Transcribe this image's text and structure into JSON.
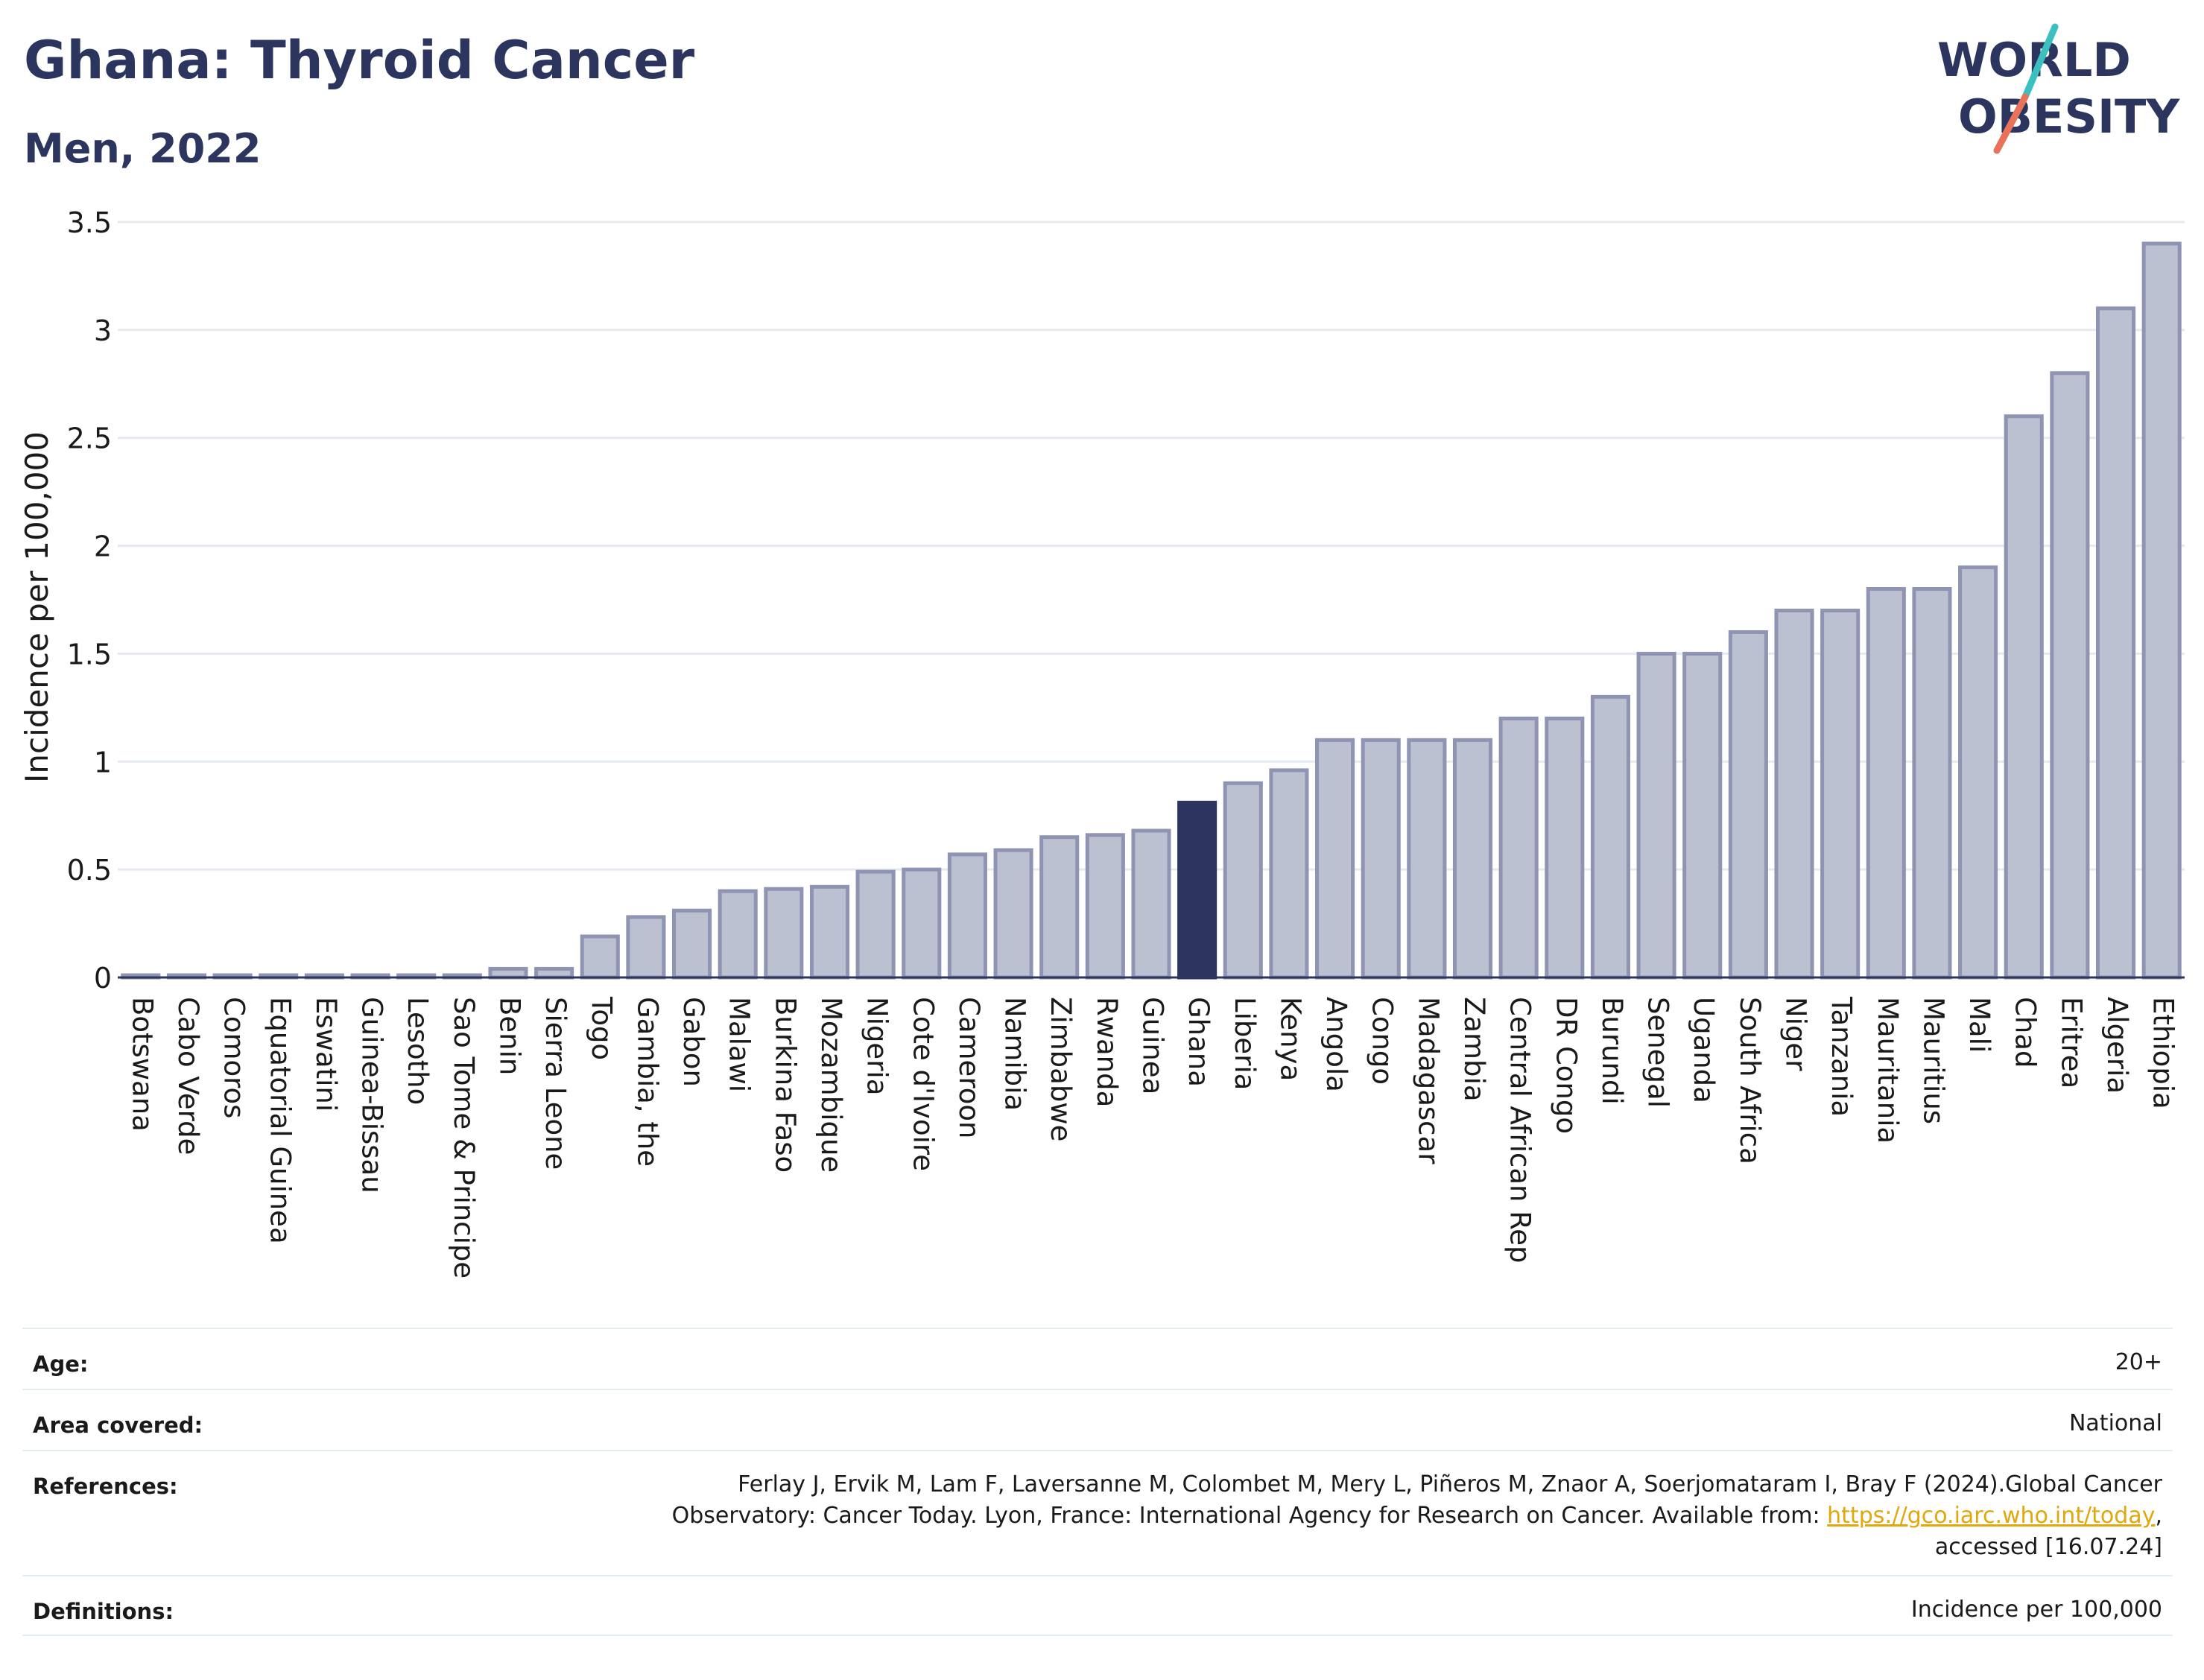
{
  "header": {
    "title": "Ghana: Thyroid Cancer",
    "subtitle": "Men, 2022"
  },
  "logo": {
    "text_line1": "WORLD",
    "text_line2": "OBESITY",
    "colors": {
      "text": "#2b355e",
      "slash_top": "#3bbfc1",
      "slash_bottom": "#e8735a"
    }
  },
  "colors": {
    "bar_default": "#bcc1d1",
    "bar_stroke": "#8e94b1",
    "bar_highlight": "#2b355e",
    "grid": "#e5eaf1",
    "axis": "#2b355e"
  },
  "chart_data": {
    "type": "bar",
    "title": "",
    "xlabel": "",
    "ylabel": "Incidence per 100,000",
    "ylim": [
      0,
      3.5
    ],
    "yticks": [
      0,
      0.5,
      1,
      1.5,
      2,
      2.5,
      3,
      3.5
    ],
    "ytick_labels": [
      "0",
      "0.5",
      "1",
      "1.5",
      "2",
      "2.5",
      "3",
      "3.5"
    ],
    "grid": true,
    "highlight": "Ghana",
    "categories": [
      "Botswana",
      "Cabo Verde",
      "Comoros",
      "Equatorial Guinea",
      "Eswatini",
      "Guinea-Bissau",
      "Lesotho",
      "Sao Tome & Principe",
      "Benin",
      "Sierra Leone",
      "Togo",
      "Gambia, the",
      "Gabon",
      "Malawi",
      "Burkina Faso",
      "Mozambique",
      "Nigeria",
      "Cote d'Ivoire",
      "Cameroon",
      "Namibia",
      "Zimbabwe",
      "Rwanda",
      "Guinea",
      "Ghana",
      "Liberia",
      "Kenya",
      "Angola",
      "Congo",
      "Madagascar",
      "Zambia",
      "Central African Rep",
      "DR Congo",
      "Burundi",
      "Senegal",
      "Uganda",
      "South Africa",
      "Niger",
      "Tanzania",
      "Mauritania",
      "Mauritius",
      "Mali",
      "Chad",
      "Eritrea",
      "Algeria",
      "Ethiopia"
    ],
    "values": [
      0.01,
      0.01,
      0.01,
      0.01,
      0.01,
      0.01,
      0.01,
      0.01,
      0.04,
      0.04,
      0.19,
      0.28,
      0.31,
      0.4,
      0.41,
      0.42,
      0.49,
      0.5,
      0.57,
      0.59,
      0.65,
      0.66,
      0.68,
      0.81,
      0.9,
      0.96,
      1.1,
      1.1,
      1.1,
      1.1,
      1.2,
      1.2,
      1.3,
      1.5,
      1.5,
      1.6,
      1.7,
      1.7,
      1.8,
      1.8,
      1.9,
      2.6,
      2.8,
      3.1,
      3.4
    ]
  },
  "info": {
    "age_label": "Age:",
    "age_value": "20+",
    "area_label": "Area covered:",
    "area_value": "National",
    "references_label": "References:",
    "references_line1": "Ferlay J, Ervik M, Lam F, Laversanne M, Colombet M, Mery L, Piñeros M, Znaor A, Soerjomataram I, Bray F (2024).Global Cancer",
    "references_line2_prefix": "Observatory: Cancer Today. Lyon, France: International Agency for Research on Cancer. Available from: ",
    "references_link": "https://gco.iarc.who.int/today",
    "references_line2_suffix": ",",
    "references_line3": "accessed [16.07.24]",
    "definitions_label": "Definitions:",
    "definitions_value": "Incidence per 100,000"
  }
}
